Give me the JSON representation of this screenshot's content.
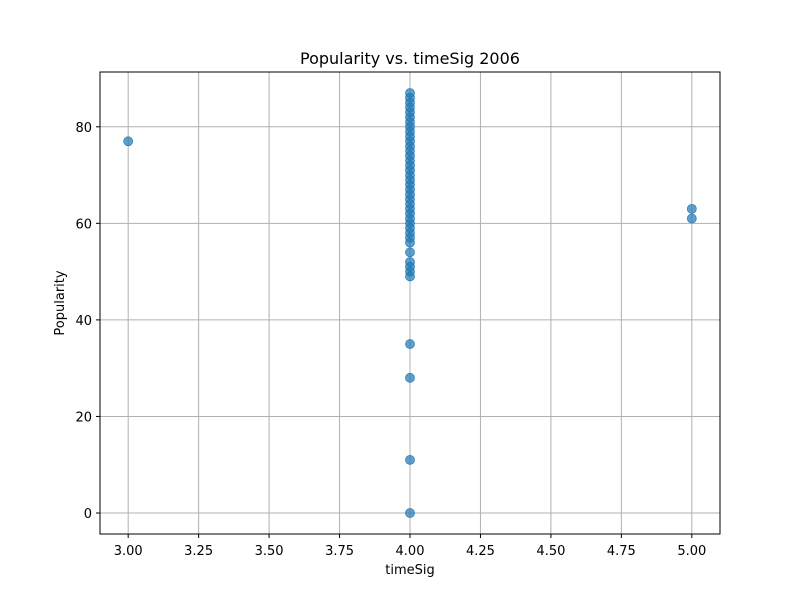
{
  "chart_data": {
    "type": "scatter",
    "title": "Popularity vs. timeSig 2006",
    "xlabel": "timeSig",
    "ylabel": "Popularity",
    "xlim": [
      2.9,
      5.1
    ],
    "ylim": [
      -4.35,
      91.35
    ],
    "xticks": [
      "3.00",
      "3.25",
      "3.50",
      "3.75",
      "4.00",
      "4.25",
      "4.50",
      "4.75",
      "5.00"
    ],
    "yticks": [
      "0",
      "20",
      "40",
      "60",
      "80"
    ],
    "grid": true,
    "marker_color": "#1f77b4",
    "points": [
      {
        "x": 3,
        "y": 77
      },
      {
        "x": 4,
        "y": 87
      },
      {
        "x": 4,
        "y": 86
      },
      {
        "x": 4,
        "y": 85
      },
      {
        "x": 4,
        "y": 84
      },
      {
        "x": 4,
        "y": 83
      },
      {
        "x": 4,
        "y": 82
      },
      {
        "x": 4,
        "y": 81
      },
      {
        "x": 4,
        "y": 80
      },
      {
        "x": 4,
        "y": 79
      },
      {
        "x": 4,
        "y": 78
      },
      {
        "x": 4,
        "y": 77
      },
      {
        "x": 4,
        "y": 76
      },
      {
        "x": 4,
        "y": 75
      },
      {
        "x": 4,
        "y": 74
      },
      {
        "x": 4,
        "y": 73
      },
      {
        "x": 4,
        "y": 72
      },
      {
        "x": 4,
        "y": 71
      },
      {
        "x": 4,
        "y": 70
      },
      {
        "x": 4,
        "y": 69
      },
      {
        "x": 4,
        "y": 68
      },
      {
        "x": 4,
        "y": 67
      },
      {
        "x": 4,
        "y": 66
      },
      {
        "x": 4,
        "y": 65
      },
      {
        "x": 4,
        "y": 64
      },
      {
        "x": 4,
        "y": 63
      },
      {
        "x": 4,
        "y": 62
      },
      {
        "x": 4,
        "y": 61
      },
      {
        "x": 4,
        "y": 60
      },
      {
        "x": 4,
        "y": 59
      },
      {
        "x": 4,
        "y": 58
      },
      {
        "x": 4,
        "y": 57
      },
      {
        "x": 4,
        "y": 56
      },
      {
        "x": 4,
        "y": 54
      },
      {
        "x": 4,
        "y": 52
      },
      {
        "x": 4,
        "y": 51
      },
      {
        "x": 4,
        "y": 50
      },
      {
        "x": 4,
        "y": 49
      },
      {
        "x": 4,
        "y": 35
      },
      {
        "x": 4,
        "y": 28
      },
      {
        "x": 4,
        "y": 11
      },
      {
        "x": 4,
        "y": 0
      },
      {
        "x": 5,
        "y": 63
      },
      {
        "x": 5,
        "y": 61
      }
    ]
  }
}
